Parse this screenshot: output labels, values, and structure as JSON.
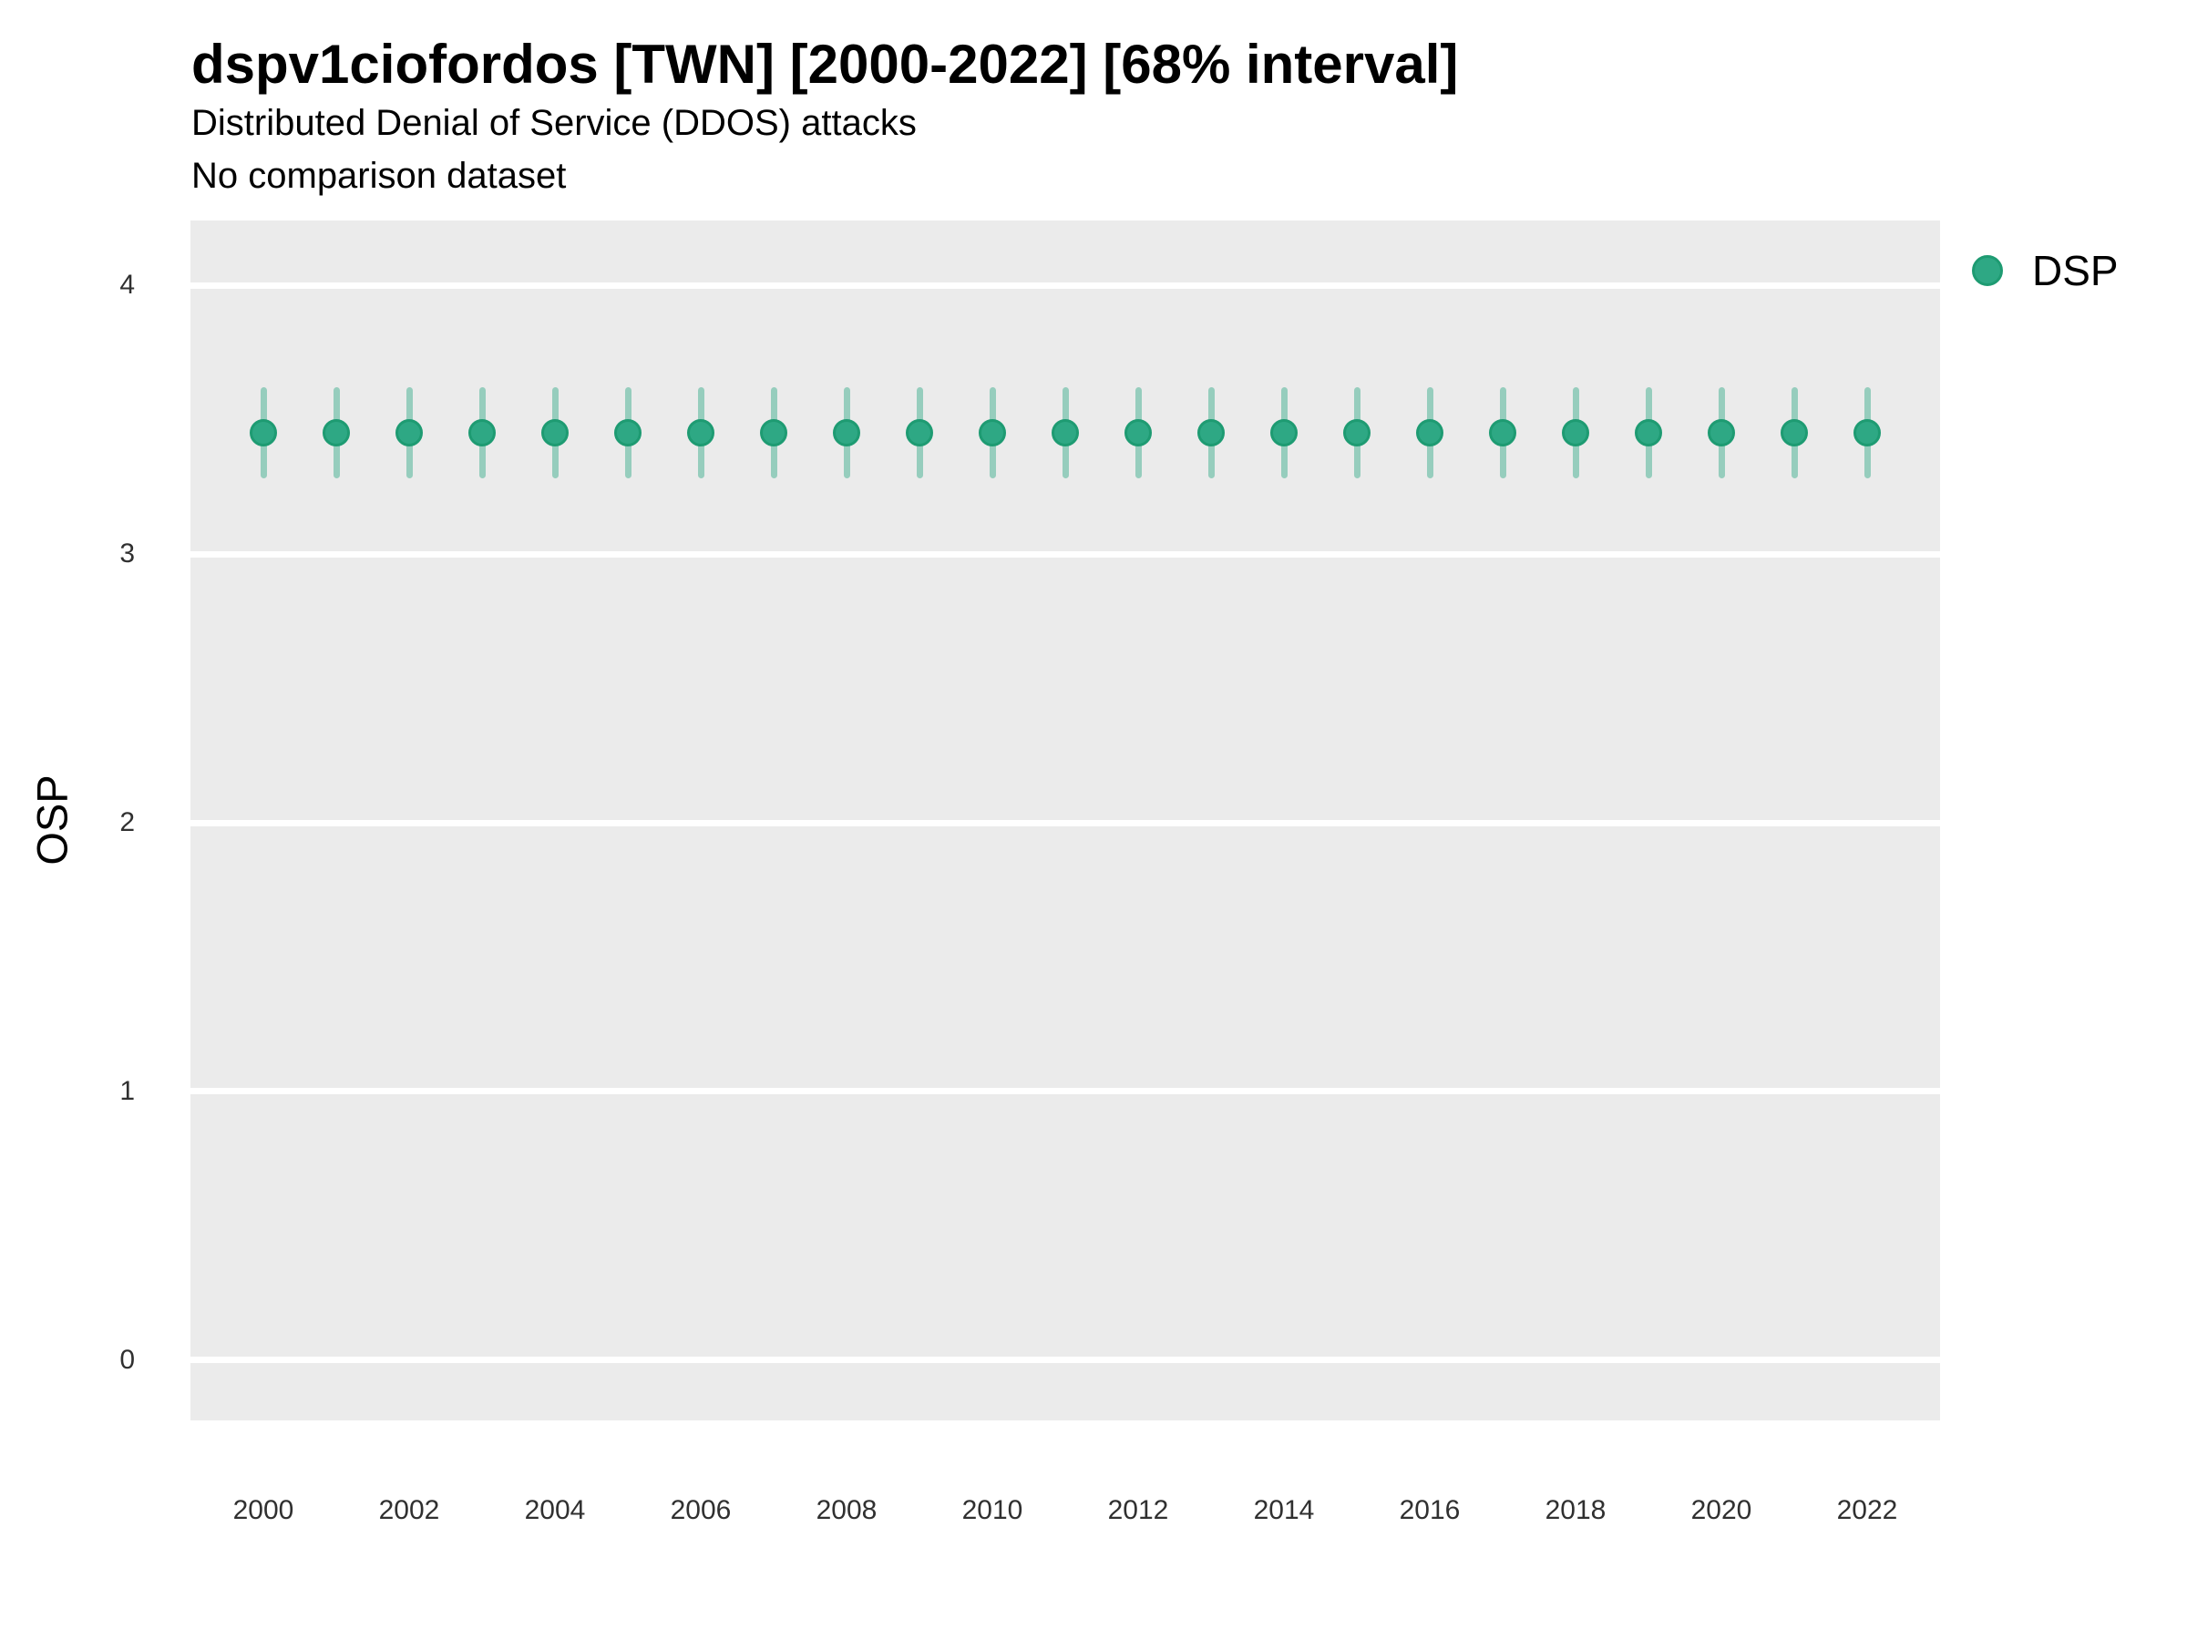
{
  "header": {
    "title": "dspv1ciofordos [TWN] [2000-2022] [68% interval]",
    "subtitle": "Distributed Denial of Service (DDOS) attacks",
    "comparison_note": "No comparison dataset"
  },
  "axes": {
    "y_title": "OSP",
    "x_title": ""
  },
  "legend": {
    "position": "right-top",
    "items": [
      {
        "label": "DSP",
        "marker": "circle-icon",
        "color": "#2EA884"
      }
    ]
  },
  "colors": {
    "point_fill": "#2EA884",
    "point_border": "#1E9B72",
    "interval_bar": "rgba(46,168,132,0.45)",
    "panel_background": "#EBEBEB",
    "gridline": "#FFFFFF",
    "tick_label": "#303030",
    "text": "#000000"
  },
  "chart_data": {
    "type": "scatter",
    "subtype": "pointrange",
    "title": "dspv1ciofordos [TWN] [2000-2022] [68% interval]",
    "subtitle": "Distributed Denial of Service (DDOS) attacks",
    "note": "No comparison dataset",
    "xlabel": "",
    "ylabel": "OSP",
    "interval_level": "68%",
    "grid": "horizontal major gridlines, white on gray panel",
    "legend_position": "right-top",
    "x": [
      2000,
      2001,
      2002,
      2003,
      2004,
      2005,
      2006,
      2007,
      2008,
      2009,
      2010,
      2011,
      2012,
      2013,
      2014,
      2015,
      2016,
      2017,
      2018,
      2019,
      2020,
      2021,
      2022
    ],
    "series": [
      {
        "name": "DSP",
        "values": [
          3.45,
          3.45,
          3.45,
          3.45,
          3.45,
          3.45,
          3.45,
          3.45,
          3.45,
          3.45,
          3.45,
          3.45,
          3.45,
          3.45,
          3.45,
          3.45,
          3.45,
          3.45,
          3.45,
          3.45,
          3.45,
          3.45,
          3.45
        ],
        "lower_68": [
          3.28,
          3.28,
          3.28,
          3.28,
          3.28,
          3.28,
          3.28,
          3.28,
          3.28,
          3.28,
          3.28,
          3.28,
          3.28,
          3.28,
          3.28,
          3.28,
          3.28,
          3.28,
          3.28,
          3.28,
          3.28,
          3.28,
          3.28
        ],
        "upper_68": [
          3.62,
          3.62,
          3.62,
          3.62,
          3.62,
          3.62,
          3.62,
          3.62,
          3.62,
          3.62,
          3.62,
          3.62,
          3.62,
          3.62,
          3.62,
          3.62,
          3.62,
          3.62,
          3.62,
          3.62,
          3.62,
          3.62,
          3.62
        ]
      }
    ],
    "xlim": [
      1999,
      2023
    ],
    "ylim": [
      -0.224,
      4.241
    ],
    "yticks": [
      0,
      1,
      2,
      3,
      4
    ],
    "xticks": [
      2000,
      2002,
      2004,
      2006,
      2008,
      2010,
      2012,
      2014,
      2016,
      2018,
      2020,
      2022
    ]
  }
}
